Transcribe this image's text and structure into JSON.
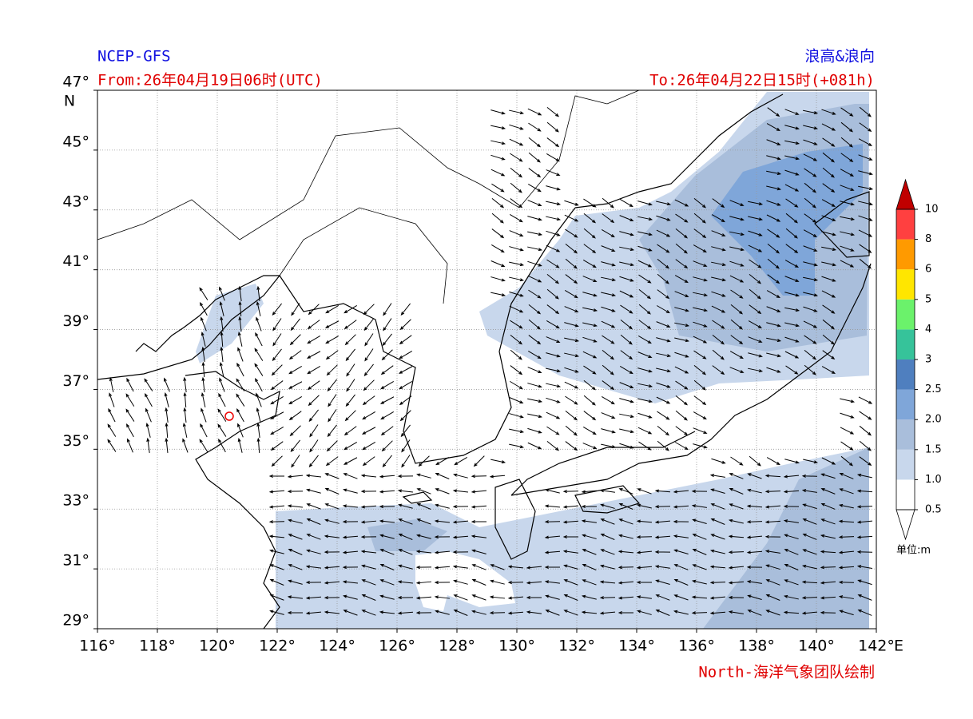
{
  "header": {
    "model": "NCEP-GFS",
    "title": "浪高&浪向",
    "from": "From:26年04月19日06时(UTC)",
    "to": "To:26年04月22日15时(+081h)"
  },
  "map": {
    "lat_ticks": [
      {
        "value": 47,
        "label": "47°"
      },
      {
        "value": 45,
        "label": "45°"
      },
      {
        "value": 43,
        "label": "43°"
      },
      {
        "value": 41,
        "label": "41°"
      },
      {
        "value": 39,
        "label": "39°"
      },
      {
        "value": 37,
        "label": "37°"
      },
      {
        "value": 35,
        "label": "35°"
      },
      {
        "value": 33,
        "label": "33°"
      },
      {
        "value": 31,
        "label": "31°"
      },
      {
        "value": 29,
        "label": "29°"
      }
    ],
    "lat_unit": "N",
    "lon_ticks": [
      {
        "value": 116,
        "label": "116°"
      },
      {
        "value": 118,
        "label": "118°"
      },
      {
        "value": 120,
        "label": "120°"
      },
      {
        "value": 122,
        "label": "122°"
      },
      {
        "value": 124,
        "label": "124°"
      },
      {
        "value": 126,
        "label": "126°"
      },
      {
        "value": 128,
        "label": "128°"
      },
      {
        "value": 130,
        "label": "130°"
      },
      {
        "value": 132,
        "label": "132°"
      },
      {
        "value": 134,
        "label": "134°"
      },
      {
        "value": 136,
        "label": "136°"
      },
      {
        "value": 138,
        "label": "138°"
      },
      {
        "value": 140,
        "label": "140°"
      },
      {
        "value": 142,
        "label": "142°"
      }
    ],
    "lon_unit": "E"
  },
  "colorbar": {
    "levels": [
      0.5,
      {
        "value": 1.0,
        "label": "1.0"
      },
      1.5,
      {
        "value": 2.0,
        "label": "2.0"
      },
      2.5,
      3,
      4,
      5,
      6,
      8,
      10
    ],
    "colors": [
      "#ffffff",
      "#c8d7ec",
      "#a9bedb",
      "#7fa6d9",
      "#4f7fbf",
      "#36c39a",
      "#6bf26b",
      "#ffe600",
      "#ff9a00",
      "#ff4040"
    ],
    "over_color": "#c00000",
    "unit": "单位:m"
  },
  "credit": "North-海洋气象团队绘制"
}
